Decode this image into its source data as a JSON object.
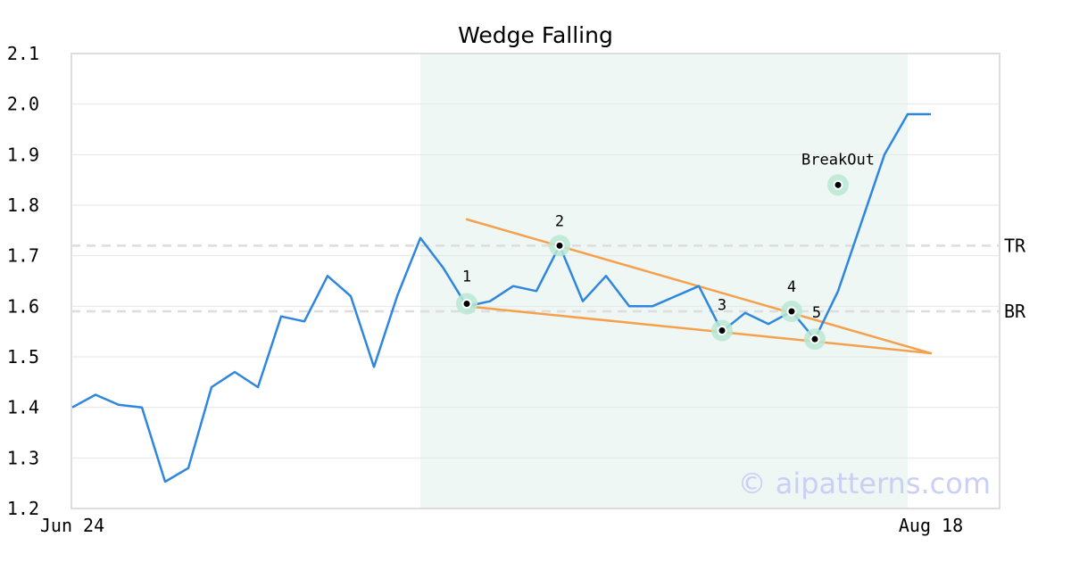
{
  "chart_data": {
    "type": "line",
    "title": "Wedge Falling",
    "xlabel": "",
    "ylabel": "",
    "ylim": [
      1.2,
      2.1
    ],
    "y_ticks": [
      "1.2",
      "1.3",
      "1.4",
      "1.5",
      "1.6",
      "1.7",
      "1.8",
      "1.9",
      "2.0",
      "2.1"
    ],
    "x_tick_labels": [
      "Jun 24",
      "Aug 18"
    ],
    "grid": true,
    "series": [
      {
        "color": "#2e86de",
        "values": [
          1.4,
          1.425,
          1.405,
          1.4,
          1.253,
          1.28,
          1.44,
          1.47,
          1.44,
          1.58,
          1.57,
          1.66,
          1.62,
          1.48,
          1.62,
          1.735,
          1.675,
          1.6,
          1.61,
          1.64,
          1.63,
          1.72,
          1.61,
          1.66,
          1.6,
          1.6,
          1.62,
          1.64,
          1.55,
          1.587,
          1.565,
          1.59,
          1.535,
          1.63,
          1.765,
          1.9,
          1.98,
          1.98
        ]
      }
    ],
    "highlight_range": {
      "start_index": 15,
      "end_index": 36,
      "color": "#eef7f3"
    },
    "trend_lines": [
      {
        "color": "#f5a04c",
        "from": {
          "index": 17,
          "value": 1.772
        },
        "to": {
          "index": 37,
          "value": 1.507
        }
      },
      {
        "color": "#f5a04c",
        "from": {
          "index": 17,
          "value": 1.6
        },
        "to": {
          "index": 37,
          "value": 1.507
        }
      }
    ],
    "reference_lines": [
      {
        "label": "TR",
        "value": 1.72
      },
      {
        "label": "BR",
        "value": 1.59
      }
    ],
    "markers": [
      {
        "label": "1",
        "index": 17,
        "value": 1.605
      },
      {
        "label": "2",
        "index": 21,
        "value": 1.72
      },
      {
        "label": "3",
        "index": 28,
        "value": 1.552
      },
      {
        "label": "4",
        "index": 31,
        "value": 1.59
      },
      {
        "label": "5",
        "index": 32,
        "value": 1.535
      },
      {
        "label": "BreakOut",
        "index": 33,
        "value": 1.84
      }
    ],
    "watermark": "© aipatterns.com",
    "colors": {
      "line": "#2e86de",
      "trend": "#f5a04c",
      "marker_halo": "#b9e8d3",
      "highlight": "#eef7f3",
      "grid": "#e6e6e6",
      "reference": "#dddddd",
      "frame": "#dddddd"
    }
  }
}
